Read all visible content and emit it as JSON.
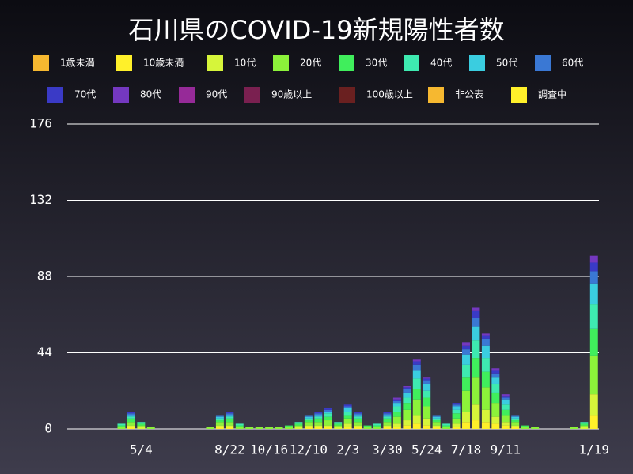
{
  "chart_data": {
    "type": "stacked_bar",
    "title": "石川県のCOVID-19新規陽性者数",
    "categories": [
      null,
      null,
      null,
      null,
      null,
      null,
      null,
      "5/4",
      null,
      null,
      null,
      null,
      null,
      null,
      null,
      null,
      "8/22",
      null,
      null,
      null,
      "10/16",
      null,
      null,
      null,
      "12/10",
      null,
      null,
      null,
      "2/3",
      null,
      null,
      null,
      "3/30",
      null,
      null,
      null,
      "5/24",
      null,
      null,
      null,
      "7/18",
      null,
      null,
      null,
      "9/11",
      null,
      null,
      null,
      null,
      null,
      null,
      null,
      null,
      "1/19"
    ],
    "ylim": [
      0,
      176
    ],
    "yticks": [
      0,
      44,
      88,
      132,
      176
    ],
    "grid": true,
    "series": [
      {
        "name": "1歳未満",
        "color": "#f6b830",
        "values": [
          0,
          0,
          0,
          0,
          0,
          0,
          0,
          0,
          0,
          0,
          0,
          0,
          0,
          0,
          0,
          0,
          0,
          0,
          0,
          0,
          0,
          0,
          0,
          0,
          0,
          0,
          0,
          0,
          0,
          0,
          0,
          0,
          0,
          0,
          0,
          0,
          0,
          0,
          0,
          0,
          0,
          0,
          0,
          0,
          0,
          0,
          0,
          0,
          0,
          0,
          0,
          0,
          0,
          0
        ]
      },
      {
        "name": "10歳未満",
        "color": "#fff02a",
        "values": [
          0,
          0,
          0,
          0,
          0,
          0,
          1,
          0,
          0,
          0,
          0,
          0,
          0,
          0,
          0,
          1,
          1,
          0,
          0,
          0,
          0,
          0,
          0,
          0,
          1,
          1,
          1,
          0,
          1,
          1,
          0,
          0,
          1,
          1,
          2,
          3,
          2,
          1,
          0,
          1,
          4,
          5,
          4,
          3,
          2,
          1,
          0,
          0,
          0,
          0,
          0,
          0,
          0,
          8
        ]
      },
      {
        "name": "10代",
        "color": "#d6f53a",
        "values": [
          0,
          0,
          0,
          0,
          0,
          0,
          1,
          1,
          0,
          0,
          0,
          0,
          0,
          0,
          0,
          1,
          1,
          0,
          0,
          0,
          0,
          0,
          0,
          1,
          1,
          1,
          1,
          1,
          2,
          1,
          0,
          0,
          1,
          2,
          3,
          5,
          4,
          1,
          0,
          2,
          6,
          9,
          7,
          4,
          2,
          1,
          0,
          0,
          0,
          0,
          0,
          0,
          1,
          12
        ]
      },
      {
        "name": "20代",
        "color": "#8cf23a",
        "values": [
          0,
          0,
          0,
          0,
          0,
          1,
          2,
          1,
          1,
          0,
          0,
          0,
          0,
          0,
          1,
          2,
          2,
          1,
          1,
          1,
          1,
          1,
          1,
          1,
          2,
          2,
          3,
          1,
          3,
          2,
          1,
          1,
          2,
          4,
          6,
          9,
          7,
          2,
          1,
          3,
          12,
          16,
          13,
          8,
          4,
          2,
          1,
          1,
          0,
          0,
          0,
          1,
          1,
          22
        ]
      },
      {
        "name": "30代",
        "color": "#40ee5c",
        "values": [
          0,
          0,
          0,
          0,
          0,
          1,
          2,
          1,
          0,
          0,
          0,
          0,
          0,
          0,
          0,
          1,
          2,
          1,
          0,
          0,
          0,
          0,
          1,
          1,
          1,
          2,
          2,
          1,
          2,
          2,
          1,
          1,
          2,
          3,
          4,
          6,
          5,
          1,
          1,
          3,
          8,
          11,
          9,
          6,
          3,
          1,
          1,
          0,
          0,
          0,
          0,
          0,
          1,
          16
        ]
      },
      {
        "name": "40代",
        "color": "#3eeab0",
        "values": [
          0,
          0,
          0,
          0,
          0,
          1,
          1,
          1,
          0,
          0,
          0,
          0,
          0,
          0,
          0,
          1,
          1,
          1,
          0,
          0,
          0,
          0,
          0,
          1,
          1,
          1,
          2,
          1,
          2,
          1,
          0,
          1,
          1,
          3,
          3,
          6,
          4,
          1,
          1,
          2,
          7,
          10,
          8,
          5,
          3,
          1,
          0,
          0,
          0,
          0,
          0,
          0,
          1,
          14
        ]
      },
      {
        "name": "50代",
        "color": "#3acde0",
        "values": [
          0,
          0,
          0,
          0,
          0,
          0,
          1,
          0,
          0,
          0,
          0,
          0,
          0,
          0,
          0,
          1,
          1,
          0,
          0,
          0,
          0,
          0,
          0,
          0,
          1,
          1,
          1,
          0,
          2,
          1,
          0,
          0,
          1,
          2,
          3,
          5,
          4,
          1,
          0,
          2,
          6,
          8,
          7,
          4,
          3,
          1,
          0,
          0,
          0,
          0,
          0,
          0,
          0,
          12
        ]
      },
      {
        "name": "60代",
        "color": "#3a78d4",
        "values": [
          0,
          0,
          0,
          0,
          0,
          0,
          1,
          0,
          0,
          0,
          0,
          0,
          0,
          0,
          0,
          1,
          1,
          0,
          0,
          0,
          0,
          0,
          0,
          0,
          1,
          1,
          1,
          0,
          1,
          1,
          0,
          0,
          1,
          1,
          2,
          3,
          2,
          1,
          0,
          1,
          3,
          5,
          4,
          2,
          1,
          1,
          0,
          0,
          0,
          0,
          0,
          0,
          0,
          7
        ]
      },
      {
        "name": "70代",
        "color": "#3a3ac6",
        "values": [
          0,
          0,
          0,
          0,
          0,
          0,
          1,
          0,
          0,
          0,
          0,
          0,
          0,
          0,
          0,
          0,
          1,
          0,
          0,
          0,
          0,
          0,
          0,
          0,
          0,
          1,
          1,
          0,
          1,
          1,
          0,
          0,
          1,
          1,
          1,
          2,
          1,
          0,
          0,
          1,
          2,
          4,
          2,
          2,
          1,
          0,
          0,
          0,
          0,
          0,
          0,
          0,
          0,
          5
        ]
      },
      {
        "name": "80代",
        "color": "#7438c0",
        "values": [
          0,
          0,
          0,
          0,
          0,
          0,
          0,
          0,
          0,
          0,
          0,
          0,
          0,
          0,
          0,
          0,
          0,
          0,
          0,
          0,
          0,
          0,
          0,
          0,
          0,
          0,
          0,
          0,
          0,
          0,
          0,
          0,
          0,
          1,
          1,
          1,
          1,
          0,
          0,
          0,
          2,
          2,
          1,
          1,
          1,
          0,
          0,
          0,
          0,
          0,
          0,
          0,
          0,
          4
        ]
      },
      {
        "name": "90代",
        "color": "#962a98",
        "values": [
          0,
          0,
          0,
          0,
          0,
          0,
          0,
          0,
          0,
          0,
          0,
          0,
          0,
          0,
          0,
          0,
          0,
          0,
          0,
          0,
          0,
          0,
          0,
          0,
          0,
          0,
          0,
          0,
          0,
          0,
          0,
          0,
          0,
          0,
          0,
          0,
          0,
          0,
          0,
          0,
          0,
          0,
          0,
          0,
          0,
          0,
          0,
          0,
          0,
          0,
          0,
          0,
          0,
          0
        ]
      },
      {
        "name": "90歳以上",
        "color": "#7a2050",
        "values": [
          0,
          0,
          0,
          0,
          0,
          0,
          0,
          0,
          0,
          0,
          0,
          0,
          0,
          0,
          0,
          0,
          0,
          0,
          0,
          0,
          0,
          0,
          0,
          0,
          0,
          0,
          0,
          0,
          0,
          0,
          0,
          0,
          0,
          0,
          0,
          0,
          0,
          0,
          0,
          0,
          0,
          0,
          0,
          0,
          0,
          0,
          0,
          0,
          0,
          0,
          0,
          0,
          0,
          0
        ]
      },
      {
        "name": "100歳以上",
        "color": "#6a2020",
        "values": [
          0,
          0,
          0,
          0,
          0,
          0,
          0,
          0,
          0,
          0,
          0,
          0,
          0,
          0,
          0,
          0,
          0,
          0,
          0,
          0,
          0,
          0,
          0,
          0,
          0,
          0,
          0,
          0,
          0,
          0,
          0,
          0,
          0,
          0,
          0,
          0,
          0,
          0,
          0,
          0,
          0,
          0,
          0,
          0,
          0,
          0,
          0,
          0,
          0,
          0,
          0,
          0,
          0,
          0
        ]
      },
      {
        "name": "非公表",
        "color": "#f6b830",
        "values": [
          0,
          0,
          0,
          0,
          0,
          0,
          0,
          0,
          0,
          0,
          0,
          0,
          0,
          0,
          0,
          0,
          0,
          0,
          0,
          0,
          0,
          0,
          0,
          0,
          0,
          0,
          0,
          0,
          0,
          0,
          0,
          0,
          0,
          0,
          0,
          0,
          0,
          0,
          0,
          0,
          0,
          0,
          0,
          0,
          0,
          0,
          0,
          0,
          0,
          0,
          0,
          0,
          0,
          0
        ]
      },
      {
        "name": "調査中",
        "color": "#fff02a",
        "values": [
          0,
          0,
          0,
          0,
          0,
          0,
          0,
          0,
          0,
          0,
          0,
          0,
          0,
          0,
          0,
          0,
          0,
          0,
          0,
          0,
          0,
          0,
          0,
          0,
          0,
          0,
          0,
          0,
          0,
          0,
          0,
          0,
          0,
          0,
          0,
          0,
          0,
          0,
          0,
          0,
          0,
          0,
          0,
          0,
          0,
          0,
          0,
          0,
          0,
          0,
          0,
          0,
          0,
          0
        ]
      }
    ]
  }
}
